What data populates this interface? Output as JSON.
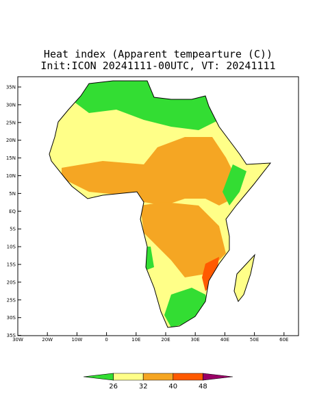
{
  "title": {
    "line1": "Heat index (Apparent tempearture (C))",
    "line2": "Init:ICON 20241111-00UTC, VT: 20241111"
  },
  "map": {
    "lat_labels": [
      "35N",
      "30N",
      "25N",
      "20N",
      "15N",
      "10N",
      "5N",
      "EQ",
      "5S",
      "10S",
      "15S",
      "20S",
      "25S",
      "30S",
      "35S"
    ],
    "lon_labels": [
      "30W",
      "20W",
      "10W",
      "0",
      "10E",
      "20E",
      "30E",
      "40E",
      "50E",
      "60E"
    ]
  },
  "colorbar": {
    "colors": [
      "#33dd33",
      "#ffff88",
      "#f5a623",
      "#ff5a00",
      "#990066"
    ],
    "labels": [
      "26",
      "32",
      "40",
      "48"
    ]
  }
}
